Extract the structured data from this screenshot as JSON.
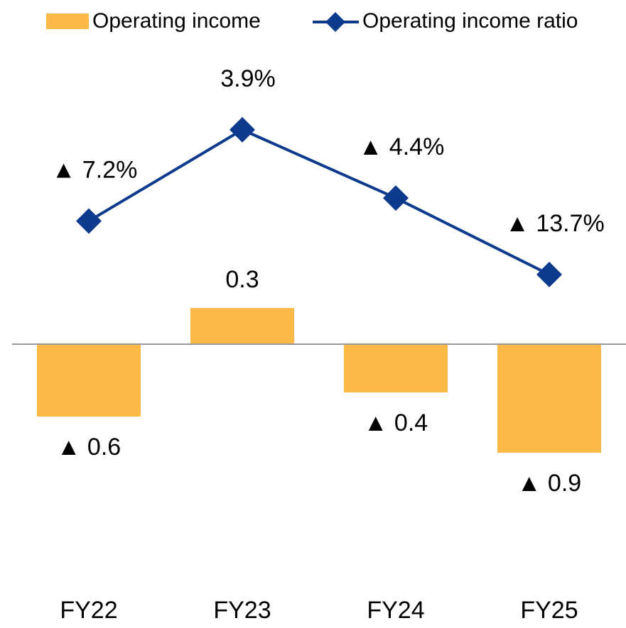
{
  "chart_data": {
    "type": "bar_line",
    "categories": [
      "FY22",
      "FY23",
      "FY24",
      "FY25"
    ],
    "series": [
      {
        "name": "Operating income",
        "type": "bar",
        "color": "#FDB945",
        "values": [
          -0.6,
          0.3,
          -0.4,
          -0.9
        ],
        "value_labels": [
          "▲ 0.6",
          "0.3",
          "▲ 0.4",
          "▲ 0.9"
        ]
      },
      {
        "name": "Operating income ratio",
        "type": "line",
        "axis": "y2",
        "color": "#0E3A8E",
        "values": [
          -7.2,
          3.9,
          -4.4,
          -13.7
        ],
        "value_labels": [
          "▲ 7.2%",
          "3.9%",
          "▲ 4.4%",
          "▲ 13.7%"
        ]
      }
    ],
    "ylim": [
      -2,
      2.5
    ],
    "y2lim": [
      -51.5,
      14.5
    ],
    "legend": "top"
  }
}
